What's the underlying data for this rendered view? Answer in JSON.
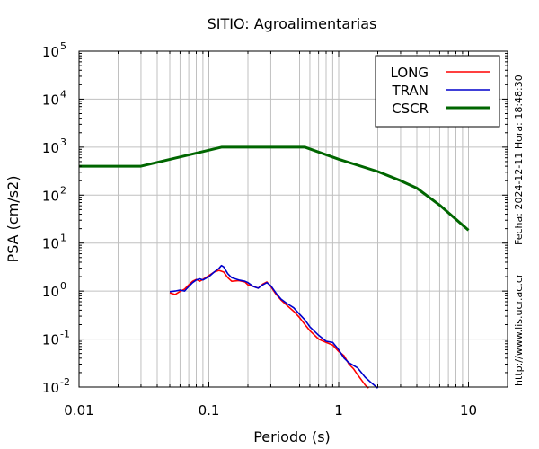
{
  "chart_data": {
    "type": "line",
    "title": "SITIO: Agroalimentarias",
    "xlabel": "Periodo (s)",
    "ylabel": "PSA (cm/s2)",
    "x_scale": "log",
    "y_scale": "log",
    "xlim": [
      0.01,
      20
    ],
    "ylim": [
      0.01,
      100000
    ],
    "x_ticks": [
      {
        "value": 0.01,
        "label": "0.01"
      },
      {
        "value": 0.1,
        "label": "0.1"
      },
      {
        "value": 1,
        "label": "1"
      },
      {
        "value": 10,
        "label": "10"
      }
    ],
    "y_ticks": [
      {
        "value": 0.01,
        "base": "10",
        "exp": "-2"
      },
      {
        "value": 0.1,
        "base": "10",
        "exp": "-1"
      },
      {
        "value": 1,
        "base": "10",
        "exp": "0"
      },
      {
        "value": 10,
        "base": "10",
        "exp": "1"
      },
      {
        "value": 100,
        "base": "10",
        "exp": "2"
      },
      {
        "value": 1000,
        "base": "10",
        "exp": "3"
      },
      {
        "value": 10000,
        "base": "10",
        "exp": "4"
      },
      {
        "value": 100000,
        "base": "10",
        "exp": "5"
      }
    ],
    "grid": true,
    "legend_position": "top-right",
    "series": [
      {
        "name": "LONG",
        "color": "#ff0000",
        "points": [
          [
            0.05,
            0.92
          ],
          [
            0.055,
            0.85
          ],
          [
            0.06,
            0.98
          ],
          [
            0.065,
            1.1
          ],
          [
            0.07,
            1.35
          ],
          [
            0.075,
            1.6
          ],
          [
            0.08,
            1.75
          ],
          [
            0.085,
            1.6
          ],
          [
            0.09,
            1.75
          ],
          [
            0.1,
            2.1
          ],
          [
            0.11,
            2.5
          ],
          [
            0.12,
            2.7
          ],
          [
            0.13,
            2.5
          ],
          [
            0.14,
            1.9
          ],
          [
            0.15,
            1.6
          ],
          [
            0.17,
            1.65
          ],
          [
            0.19,
            1.55
          ],
          [
            0.2,
            1.35
          ],
          [
            0.22,
            1.25
          ],
          [
            0.24,
            1.15
          ],
          [
            0.26,
            1.4
          ],
          [
            0.28,
            1.55
          ],
          [
            0.3,
            1.25
          ],
          [
            0.33,
            0.85
          ],
          [
            0.36,
            0.65
          ],
          [
            0.4,
            0.5
          ],
          [
            0.45,
            0.38
          ],
          [
            0.5,
            0.28
          ],
          [
            0.55,
            0.2
          ],
          [
            0.6,
            0.15
          ],
          [
            0.7,
            0.1
          ],
          [
            0.8,
            0.085
          ],
          [
            0.9,
            0.075
          ],
          [
            1.0,
            0.055
          ],
          [
            1.1,
            0.045
          ],
          [
            1.2,
            0.03
          ],
          [
            1.3,
            0.024
          ],
          [
            1.4,
            0.018
          ],
          [
            1.5,
            0.014
          ],
          [
            1.6,
            0.011
          ],
          [
            1.7,
            0.0095
          ]
        ]
      },
      {
        "name": "TRAN",
        "color": "#0000cc",
        "points": [
          [
            0.05,
            0.97
          ],
          [
            0.055,
            1.0
          ],
          [
            0.06,
            1.05
          ],
          [
            0.065,
            1.0
          ],
          [
            0.07,
            1.25
          ],
          [
            0.075,
            1.5
          ],
          [
            0.08,
            1.7
          ],
          [
            0.085,
            1.8
          ],
          [
            0.09,
            1.7
          ],
          [
            0.1,
            2.0
          ],
          [
            0.11,
            2.5
          ],
          [
            0.12,
            3.0
          ],
          [
            0.125,
            3.4
          ],
          [
            0.13,
            3.2
          ],
          [
            0.14,
            2.3
          ],
          [
            0.15,
            1.9
          ],
          [
            0.17,
            1.7
          ],
          [
            0.19,
            1.6
          ],
          [
            0.2,
            1.5
          ],
          [
            0.22,
            1.25
          ],
          [
            0.24,
            1.15
          ],
          [
            0.26,
            1.35
          ],
          [
            0.28,
            1.5
          ],
          [
            0.3,
            1.3
          ],
          [
            0.33,
            0.9
          ],
          [
            0.36,
            0.68
          ],
          [
            0.4,
            0.55
          ],
          [
            0.45,
            0.45
          ],
          [
            0.5,
            0.33
          ],
          [
            0.55,
            0.25
          ],
          [
            0.6,
            0.18
          ],
          [
            0.7,
            0.12
          ],
          [
            0.8,
            0.09
          ],
          [
            0.9,
            0.085
          ],
          [
            1.0,
            0.06
          ],
          [
            1.1,
            0.04
          ],
          [
            1.2,
            0.032
          ],
          [
            1.4,
            0.025
          ],
          [
            1.6,
            0.016
          ],
          [
            1.8,
            0.012
          ],
          [
            2.0,
            0.0095
          ]
        ]
      },
      {
        "name": "CSCR",
        "color": "#006600",
        "points": [
          [
            0.01,
            400
          ],
          [
            0.03,
            400
          ],
          [
            0.125,
            1000
          ],
          [
            0.55,
            1000
          ],
          [
            1,
            560
          ],
          [
            2,
            310
          ],
          [
            3,
            200
          ],
          [
            4,
            140
          ],
          [
            6,
            62
          ],
          [
            10,
            18.5
          ]
        ]
      }
    ]
  },
  "side_labels": {
    "date": "Fecha: 2024-12-11 Hora: 18:48:30",
    "url": "http://www.lis.ucr.ac.cr"
  }
}
